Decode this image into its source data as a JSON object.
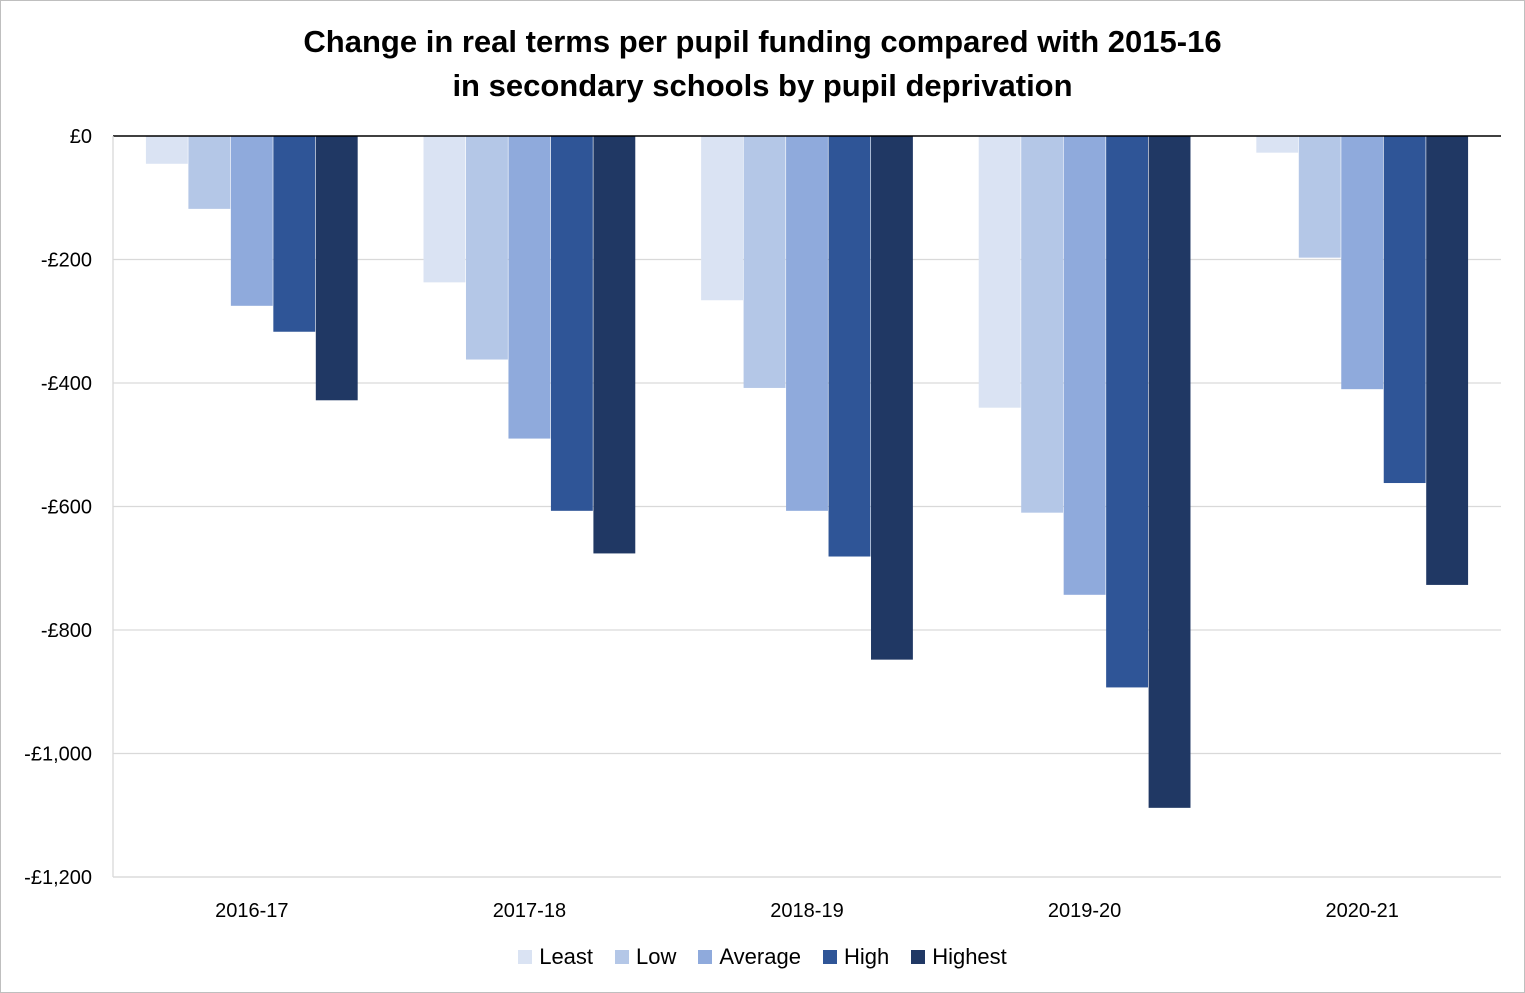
{
  "chart_data": {
    "type": "bar",
    "title_lines": [
      "Change in real terms per pupil funding compared with 2015-16",
      "in secondary schools by pupil deprivation"
    ],
    "xlabel": "",
    "ylabel": "",
    "ylim": [
      -1200,
      0
    ],
    "y_ticks": [
      0,
      -200,
      -400,
      -600,
      -800,
      -1000,
      -1200
    ],
    "y_tick_labels": [
      "£0",
      "-£200",
      "-£400",
      "-£600",
      "-£800",
      "-£1,000",
      "-£1,200"
    ],
    "grid": true,
    "legend_position": "bottom",
    "categories": [
      "2016-17",
      "2017-18",
      "2018-19",
      "2019-20",
      "2020-21"
    ],
    "series": [
      {
        "name": "Least",
        "color": "#dae3f3",
        "values": [
          -45,
          -237,
          -266,
          -440,
          -27
        ]
      },
      {
        "name": "Low",
        "color": "#b4c7e7",
        "values": [
          -118,
          -362,
          -408,
          -610,
          -197
        ]
      },
      {
        "name": "Average",
        "color": "#8faadc",
        "values": [
          -275,
          -490,
          -607,
          -743,
          -410
        ]
      },
      {
        "name": "High",
        "color": "#2f5597",
        "values": [
          -317,
          -607,
          -681,
          -893,
          -562
        ]
      },
      {
        "name": "Highest",
        "color": "#203864",
        "values": [
          -428,
          -676,
          -848,
          -1088,
          -727
        ]
      }
    ]
  },
  "colors": {
    "gridline": "#d9d9d9",
    "axis": "#000000",
    "frame": "#bfbfbf"
  }
}
